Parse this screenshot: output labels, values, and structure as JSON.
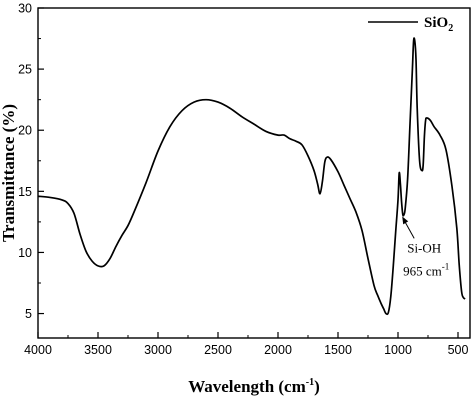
{
  "chart_data": {
    "type": "line",
    "xlabel": {
      "main": "Wavelength (cm",
      "sup": "-1",
      "close": ")"
    },
    "ylabel": "Transmittance (%)",
    "xlim": [
      4000,
      400
    ],
    "ylim": [
      3,
      30
    ],
    "xticks": [
      4000,
      3500,
      3000,
      2500,
      2000,
      1500,
      1000,
      500
    ],
    "yticks": [
      5,
      10,
      15,
      20,
      25,
      30
    ],
    "grid": false,
    "legend_position": "top-right",
    "series": [
      {
        "name": "SiO",
        "name_subscript": "2",
        "color": "#000000",
        "points": [
          [
            4000,
            14.6
          ],
          [
            3900,
            14.5
          ],
          [
            3800,
            14.3
          ],
          [
            3750,
            14.0
          ],
          [
            3700,
            13.2
          ],
          [
            3650,
            11.5
          ],
          [
            3600,
            10.1
          ],
          [
            3550,
            9.3
          ],
          [
            3500,
            8.9
          ],
          [
            3450,
            8.9
          ],
          [
            3400,
            9.5
          ],
          [
            3350,
            10.5
          ],
          [
            3300,
            11.4
          ],
          [
            3250,
            12.2
          ],
          [
            3200,
            13.3
          ],
          [
            3100,
            15.7
          ],
          [
            3000,
            18.3
          ],
          [
            2900,
            20.3
          ],
          [
            2800,
            21.6
          ],
          [
            2700,
            22.3
          ],
          [
            2600,
            22.5
          ],
          [
            2500,
            22.3
          ],
          [
            2400,
            21.8
          ],
          [
            2300,
            21.1
          ],
          [
            2200,
            20.5
          ],
          [
            2100,
            19.9
          ],
          [
            2000,
            19.6
          ],
          [
            1950,
            19.6
          ],
          [
            1900,
            19.3
          ],
          [
            1850,
            19.1
          ],
          [
            1800,
            18.8
          ],
          [
            1750,
            17.9
          ],
          [
            1700,
            16.7
          ],
          [
            1670,
            15.6
          ],
          [
            1650,
            14.8
          ],
          [
            1630,
            15.8
          ],
          [
            1610,
            17.4
          ],
          [
            1590,
            17.8
          ],
          [
            1560,
            17.6
          ],
          [
            1500,
            16.6
          ],
          [
            1450,
            15.5
          ],
          [
            1400,
            14.4
          ],
          [
            1350,
            13.3
          ],
          [
            1300,
            11.8
          ],
          [
            1250,
            9.5
          ],
          [
            1200,
            7.3
          ],
          [
            1170,
            6.5
          ],
          [
            1140,
            5.8
          ],
          [
            1120,
            5.4
          ],
          [
            1100,
            5.0
          ],
          [
            1080,
            5.1
          ],
          [
            1060,
            6.4
          ],
          [
            1040,
            8.8
          ],
          [
            1020,
            11.6
          ],
          [
            1000,
            14.3
          ],
          [
            990,
            16.5
          ],
          [
            980,
            15.6
          ],
          [
            970,
            14.1
          ],
          [
            960,
            13.1
          ],
          [
            950,
            13.1
          ],
          [
            940,
            13.6
          ],
          [
            920,
            16.0
          ],
          [
            900,
            20.5
          ],
          [
            880,
            25.0
          ],
          [
            870,
            27.3
          ],
          [
            860,
            27.3
          ],
          [
            850,
            25.8
          ],
          [
            840,
            21.8
          ],
          [
            820,
            17.5
          ],
          [
            800,
            16.7
          ],
          [
            790,
            17.2
          ],
          [
            780,
            19.5
          ],
          [
            770,
            20.8
          ],
          [
            760,
            21.0
          ],
          [
            730,
            20.8
          ],
          [
            700,
            20.3
          ],
          [
            650,
            19.6
          ],
          [
            600,
            18.4
          ],
          [
            550,
            15.4
          ],
          [
            510,
            12.0
          ],
          [
            490,
            9.0
          ],
          [
            470,
            6.8
          ],
          [
            455,
            6.3
          ],
          [
            440,
            6.2
          ]
        ]
      }
    ],
    "annotations": [
      {
        "text": "Si-OH",
        "value": "965 cm",
        "value_sup": "-1",
        "points_to": [
          965,
          13.2
        ]
      }
    ]
  }
}
